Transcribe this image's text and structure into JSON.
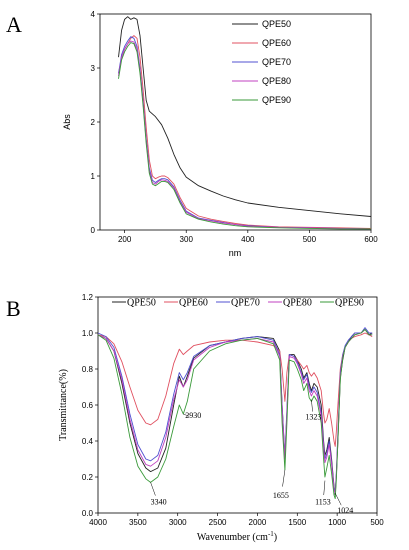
{
  "panels": [
    {
      "letter": "A"
    },
    {
      "letter": "B"
    }
  ],
  "chart_data": [
    {
      "type": "line",
      "panel": "A",
      "title": "",
      "xlabel": "nm",
      "ylabel": "Abs",
      "xlim": [
        160,
        600
      ],
      "ylim": [
        0,
        4
      ],
      "xticks": [
        "200",
        "300",
        "400",
        "500",
        "600"
      ],
      "yticks": [
        "0",
        "1",
        "2",
        "3",
        "4"
      ],
      "legend_position": "top-right",
      "series": [
        {
          "name": "QPE50",
          "color": "#222222",
          "x": [
            190,
            195,
            200,
            205,
            210,
            215,
            220,
            225,
            230,
            235,
            240,
            250,
            260,
            270,
            280,
            290,
            300,
            320,
            340,
            360,
            380,
            400,
            450,
            500,
            550,
            600
          ],
          "y": [
            3.2,
            3.7,
            3.9,
            3.95,
            3.9,
            3.93,
            3.9,
            3.6,
            3.0,
            2.4,
            2.2,
            2.1,
            1.95,
            1.7,
            1.4,
            1.15,
            0.98,
            0.82,
            0.72,
            0.63,
            0.56,
            0.5,
            0.42,
            0.36,
            0.3,
            0.25
          ]
        },
        {
          "name": "QPE60",
          "color": "#e05060",
          "x": [
            190,
            195,
            200,
            205,
            210,
            215,
            220,
            225,
            230,
            235,
            240,
            245,
            250,
            255,
            260,
            265,
            270,
            280,
            290,
            300,
            320,
            340,
            360,
            380,
            400,
            450,
            500,
            550,
            600
          ],
          "y": [
            2.9,
            3.2,
            3.35,
            3.45,
            3.55,
            3.6,
            3.55,
            3.2,
            2.6,
            1.9,
            1.3,
            1.0,
            0.95,
            0.98,
            1.0,
            1.0,
            0.97,
            0.85,
            0.6,
            0.4,
            0.26,
            0.2,
            0.16,
            0.12,
            0.09,
            0.06,
            0.05,
            0.04,
            0.03
          ]
        },
        {
          "name": "QPE70",
          "color": "#5050d0",
          "x": [
            190,
            195,
            200,
            205,
            210,
            215,
            220,
            225,
            230,
            235,
            240,
            245,
            250,
            255,
            260,
            265,
            270,
            280,
            290,
            300,
            320,
            340,
            360,
            380,
            400,
            450,
            500,
            550,
            600
          ],
          "y": [
            2.9,
            3.25,
            3.4,
            3.5,
            3.58,
            3.55,
            3.4,
            3.0,
            2.4,
            1.7,
            1.15,
            0.92,
            0.88,
            0.92,
            0.95,
            0.95,
            0.93,
            0.8,
            0.55,
            0.35,
            0.22,
            0.18,
            0.14,
            0.1,
            0.08,
            0.05,
            0.04,
            0.03,
            0.02
          ]
        },
        {
          "name": "QPE80",
          "color": "#c040c0",
          "x": [
            190,
            195,
            200,
            205,
            210,
            215,
            220,
            225,
            230,
            235,
            240,
            245,
            250,
            255,
            260,
            265,
            270,
            280,
            290,
            300,
            320,
            340,
            360,
            380,
            400,
            450,
            500,
            550,
            600
          ],
          "y": [
            2.85,
            3.2,
            3.35,
            3.45,
            3.5,
            3.48,
            3.35,
            2.95,
            2.35,
            1.65,
            1.1,
            0.88,
            0.85,
            0.9,
            0.93,
            0.92,
            0.9,
            0.78,
            0.52,
            0.33,
            0.21,
            0.17,
            0.13,
            0.1,
            0.07,
            0.05,
            0.04,
            0.03,
            0.02
          ]
        },
        {
          "name": "QPE90",
          "color": "#3a9a3a",
          "x": [
            190,
            195,
            200,
            205,
            210,
            215,
            220,
            225,
            230,
            235,
            240,
            245,
            250,
            255,
            260,
            265,
            270,
            280,
            290,
            300,
            320,
            340,
            360,
            380,
            400,
            450,
            500,
            550,
            600
          ],
          "y": [
            2.8,
            3.15,
            3.3,
            3.4,
            3.47,
            3.45,
            3.3,
            2.9,
            2.3,
            1.6,
            1.05,
            0.85,
            0.82,
            0.86,
            0.9,
            0.9,
            0.88,
            0.75,
            0.5,
            0.3,
            0.2,
            0.15,
            0.11,
            0.08,
            0.06,
            0.04,
            0.03,
            0.02,
            0.02
          ]
        }
      ]
    },
    {
      "type": "line",
      "panel": "B",
      "title": "",
      "xlabel": "Wavenumber (cm",
      "xlabel_sup": "-1",
      "xlabel_close": ")",
      "ylabel": "Transmittance(%)",
      "xlim": [
        4000,
        500
      ],
      "ylim": [
        0,
        1.2
      ],
      "xticks": [
        "4000",
        "3500",
        "3000",
        "2500",
        "2000",
        "1500",
        "1000",
        "500"
      ],
      "yticks": [
        "0.0",
        "0.2",
        "0.4",
        "0.6",
        "0.8",
        "1.0",
        "1.2"
      ],
      "legend_position": "top",
      "annotations": [
        {
          "text": "3340",
          "x": 3340,
          "y": 0.17
        },
        {
          "text": "2930",
          "x": 2930,
          "y": 0.55
        },
        {
          "text": "1655",
          "x": 1655,
          "y": 0.24
        },
        {
          "text": "1323",
          "x": 1323,
          "y": 0.63
        },
        {
          "text": "1153",
          "x": 1153,
          "y": 0.18
        },
        {
          "text": "1024",
          "x": 1024,
          "y": 0.11
        }
      ],
      "series": [
        {
          "name": "QPE50",
          "color": "#222222",
          "x": [
            4000,
            3900,
            3800,
            3700,
            3600,
            3500,
            3400,
            3340,
            3250,
            3150,
            3050,
            2980,
            2930,
            2880,
            2800,
            2600,
            2400,
            2200,
            2000,
            1800,
            1720,
            1690,
            1655,
            1630,
            1600,
            1540,
            1500,
            1450,
            1420,
            1380,
            1350,
            1323,
            1290,
            1250,
            1200,
            1170,
            1153,
            1130,
            1100,
            1070,
            1040,
            1024,
            1010,
            990,
            960,
            930,
            900,
            860,
            820,
            780,
            700,
            650,
            600,
            560
          ],
          "y": [
            0.99,
            0.97,
            0.9,
            0.72,
            0.5,
            0.33,
            0.25,
            0.23,
            0.25,
            0.36,
            0.6,
            0.76,
            0.7,
            0.76,
            0.86,
            0.93,
            0.95,
            0.97,
            0.98,
            0.97,
            0.9,
            0.6,
            0.3,
            0.55,
            0.88,
            0.88,
            0.85,
            0.8,
            0.75,
            0.78,
            0.72,
            0.68,
            0.72,
            0.7,
            0.6,
            0.4,
            0.32,
            0.35,
            0.42,
            0.3,
            0.15,
            0.1,
            0.2,
            0.4,
            0.75,
            0.85,
            0.92,
            0.95,
            0.98,
            1.0,
            1.0,
            1.02,
            0.99,
            1.0
          ]
        },
        {
          "name": "QPE60",
          "color": "#e05060",
          "x": [
            4000,
            3900,
            3800,
            3700,
            3600,
            3500,
            3400,
            3340,
            3250,
            3150,
            3050,
            2980,
            2930,
            2880,
            2800,
            2600,
            2400,
            2200,
            2000,
            1800,
            1720,
            1690,
            1655,
            1630,
            1600,
            1540,
            1500,
            1450,
            1420,
            1380,
            1350,
            1323,
            1290,
            1250,
            1200,
            1170,
            1153,
            1130,
            1100,
            1070,
            1040,
            1024,
            1010,
            990,
            960,
            930,
            900,
            860,
            820,
            780,
            700,
            650,
            600,
            560
          ],
          "y": [
            0.99,
            0.98,
            0.94,
            0.84,
            0.7,
            0.57,
            0.5,
            0.49,
            0.52,
            0.65,
            0.83,
            0.91,
            0.88,
            0.9,
            0.93,
            0.95,
            0.96,
            0.96,
            0.95,
            0.93,
            0.9,
            0.8,
            0.62,
            0.78,
            0.88,
            0.87,
            0.85,
            0.82,
            0.8,
            0.82,
            0.78,
            0.76,
            0.78,
            0.75,
            0.68,
            0.55,
            0.5,
            0.52,
            0.58,
            0.5,
            0.4,
            0.37,
            0.45,
            0.6,
            0.8,
            0.88,
            0.92,
            0.95,
            0.97,
            0.98,
            0.99,
            1.0,
            0.99,
            0.98
          ]
        },
        {
          "name": "QPE70",
          "color": "#5050d0",
          "x": [
            4000,
            3900,
            3800,
            3700,
            3600,
            3500,
            3400,
            3340,
            3250,
            3150,
            3050,
            2980,
            2930,
            2880,
            2800,
            2600,
            2400,
            2200,
            2000,
            1800,
            1720,
            1690,
            1655,
            1630,
            1600,
            1540,
            1500,
            1450,
            1420,
            1380,
            1350,
            1323,
            1290,
            1250,
            1200,
            1170,
            1153,
            1130,
            1100,
            1070,
            1040,
            1024,
            1010,
            990,
            960,
            930,
            900,
            860,
            820,
            780,
            700,
            650,
            600,
            560
          ],
          "y": [
            1.0,
            0.98,
            0.92,
            0.76,
            0.55,
            0.38,
            0.3,
            0.29,
            0.32,
            0.45,
            0.66,
            0.78,
            0.74,
            0.78,
            0.87,
            0.93,
            0.95,
            0.97,
            0.98,
            0.96,
            0.88,
            0.6,
            0.32,
            0.58,
            0.88,
            0.87,
            0.84,
            0.78,
            0.74,
            0.77,
            0.7,
            0.67,
            0.7,
            0.67,
            0.56,
            0.38,
            0.3,
            0.33,
            0.4,
            0.28,
            0.14,
            0.12,
            0.22,
            0.45,
            0.78,
            0.88,
            0.93,
            0.96,
            0.98,
            1.0,
            1.0,
            1.03,
            1.0,
            1.0
          ]
        },
        {
          "name": "QPE80",
          "color": "#c040c0",
          "x": [
            4000,
            3900,
            3800,
            3700,
            3600,
            3500,
            3400,
            3340,
            3250,
            3150,
            3050,
            2980,
            2930,
            2880,
            2800,
            2600,
            2400,
            2200,
            2000,
            1800,
            1720,
            1690,
            1655,
            1630,
            1600,
            1540,
            1500,
            1450,
            1420,
            1380,
            1350,
            1323,
            1290,
            1250,
            1200,
            1170,
            1153,
            1130,
            1100,
            1070,
            1040,
            1024,
            1010,
            990,
            960,
            930,
            900,
            860,
            820,
            780,
            700,
            650,
            600,
            560
          ],
          "y": [
            0.99,
            0.97,
            0.9,
            0.74,
            0.52,
            0.35,
            0.27,
            0.26,
            0.29,
            0.42,
            0.63,
            0.74,
            0.7,
            0.74,
            0.85,
            0.92,
            0.95,
            0.96,
            0.97,
            0.95,
            0.87,
            0.58,
            0.3,
            0.56,
            0.87,
            0.86,
            0.83,
            0.77,
            0.72,
            0.75,
            0.68,
            0.65,
            0.68,
            0.65,
            0.54,
            0.36,
            0.28,
            0.31,
            0.38,
            0.27,
            0.13,
            0.11,
            0.21,
            0.43,
            0.76,
            0.87,
            0.92,
            0.95,
            0.97,
            0.99,
            1.0,
            1.02,
            0.99,
            0.99
          ]
        },
        {
          "name": "QPE90",
          "color": "#3a9a3a",
          "x": [
            4000,
            3900,
            3800,
            3700,
            3600,
            3500,
            3400,
            3340,
            3250,
            3150,
            3050,
            2980,
            2930,
            2880,
            2800,
            2600,
            2400,
            2200,
            2000,
            1800,
            1720,
            1690,
            1655,
            1630,
            1600,
            1540,
            1500,
            1450,
            1420,
            1380,
            1350,
            1323,
            1290,
            1250,
            1200,
            1170,
            1153,
            1130,
            1100,
            1070,
            1040,
            1024,
            1010,
            990,
            960,
            930,
            900,
            860,
            820,
            780,
            700,
            650,
            600,
            560
          ],
          "y": [
            0.99,
            0.96,
            0.86,
            0.66,
            0.42,
            0.26,
            0.19,
            0.17,
            0.2,
            0.3,
            0.48,
            0.6,
            0.55,
            0.62,
            0.8,
            0.9,
            0.94,
            0.96,
            0.97,
            0.94,
            0.85,
            0.5,
            0.24,
            0.5,
            0.85,
            0.84,
            0.8,
            0.74,
            0.68,
            0.72,
            0.64,
            0.62,
            0.65,
            0.62,
            0.5,
            0.3,
            0.2,
            0.25,
            0.32,
            0.22,
            0.1,
            0.08,
            0.18,
            0.4,
            0.74,
            0.86,
            0.92,
            0.95,
            0.97,
            0.99,
            1.0,
            1.02,
            0.99,
            0.99
          ]
        }
      ]
    }
  ]
}
